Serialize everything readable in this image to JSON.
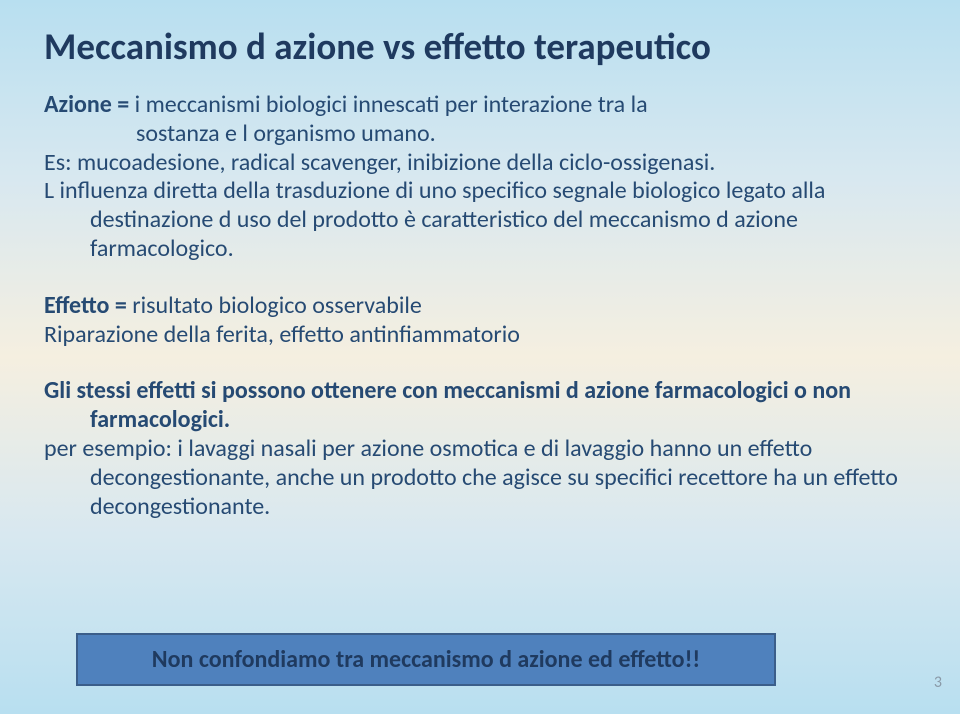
{
  "title": "Meccanismo d azione vs effetto terapeutico",
  "p1_line1a": "Azione = ",
  "p1_line1b": "i meccanismi biologici innescati per interazione tra la",
  "p1_line2": "sostanza e l organismo umano.",
  "p1_line3": "Es: mucoadesione, radical scavenger, inibizione della ciclo-ossigenasi.",
  "p1_line4": "L influenza diretta della trasduzione di uno specifico segnale biologico legato alla destinazione d uso del prodotto è caratteristico del meccanismo d azione farmacologico.",
  "p2_line1a": "Effetto = ",
  "p2_line1b": "risultato biologico osservabile",
  "p2_line2": "Riparazione della ferita, effetto antinfiammatorio",
  "p3_line1": "Gli stessi effetti si possono ottenere con meccanismi d azione farmacologici o non farmacologici.",
  "p3_line2": "per esempio: i lavaggi nasali per azione osmotica e di lavaggio hanno un effetto decongestionante, anche un prodotto che agisce su specifici recettore ha un effetto decongestionante.",
  "callout": "Non confondiamo tra meccanismo d azione ed effetto!!",
  "pagenum": "3"
}
